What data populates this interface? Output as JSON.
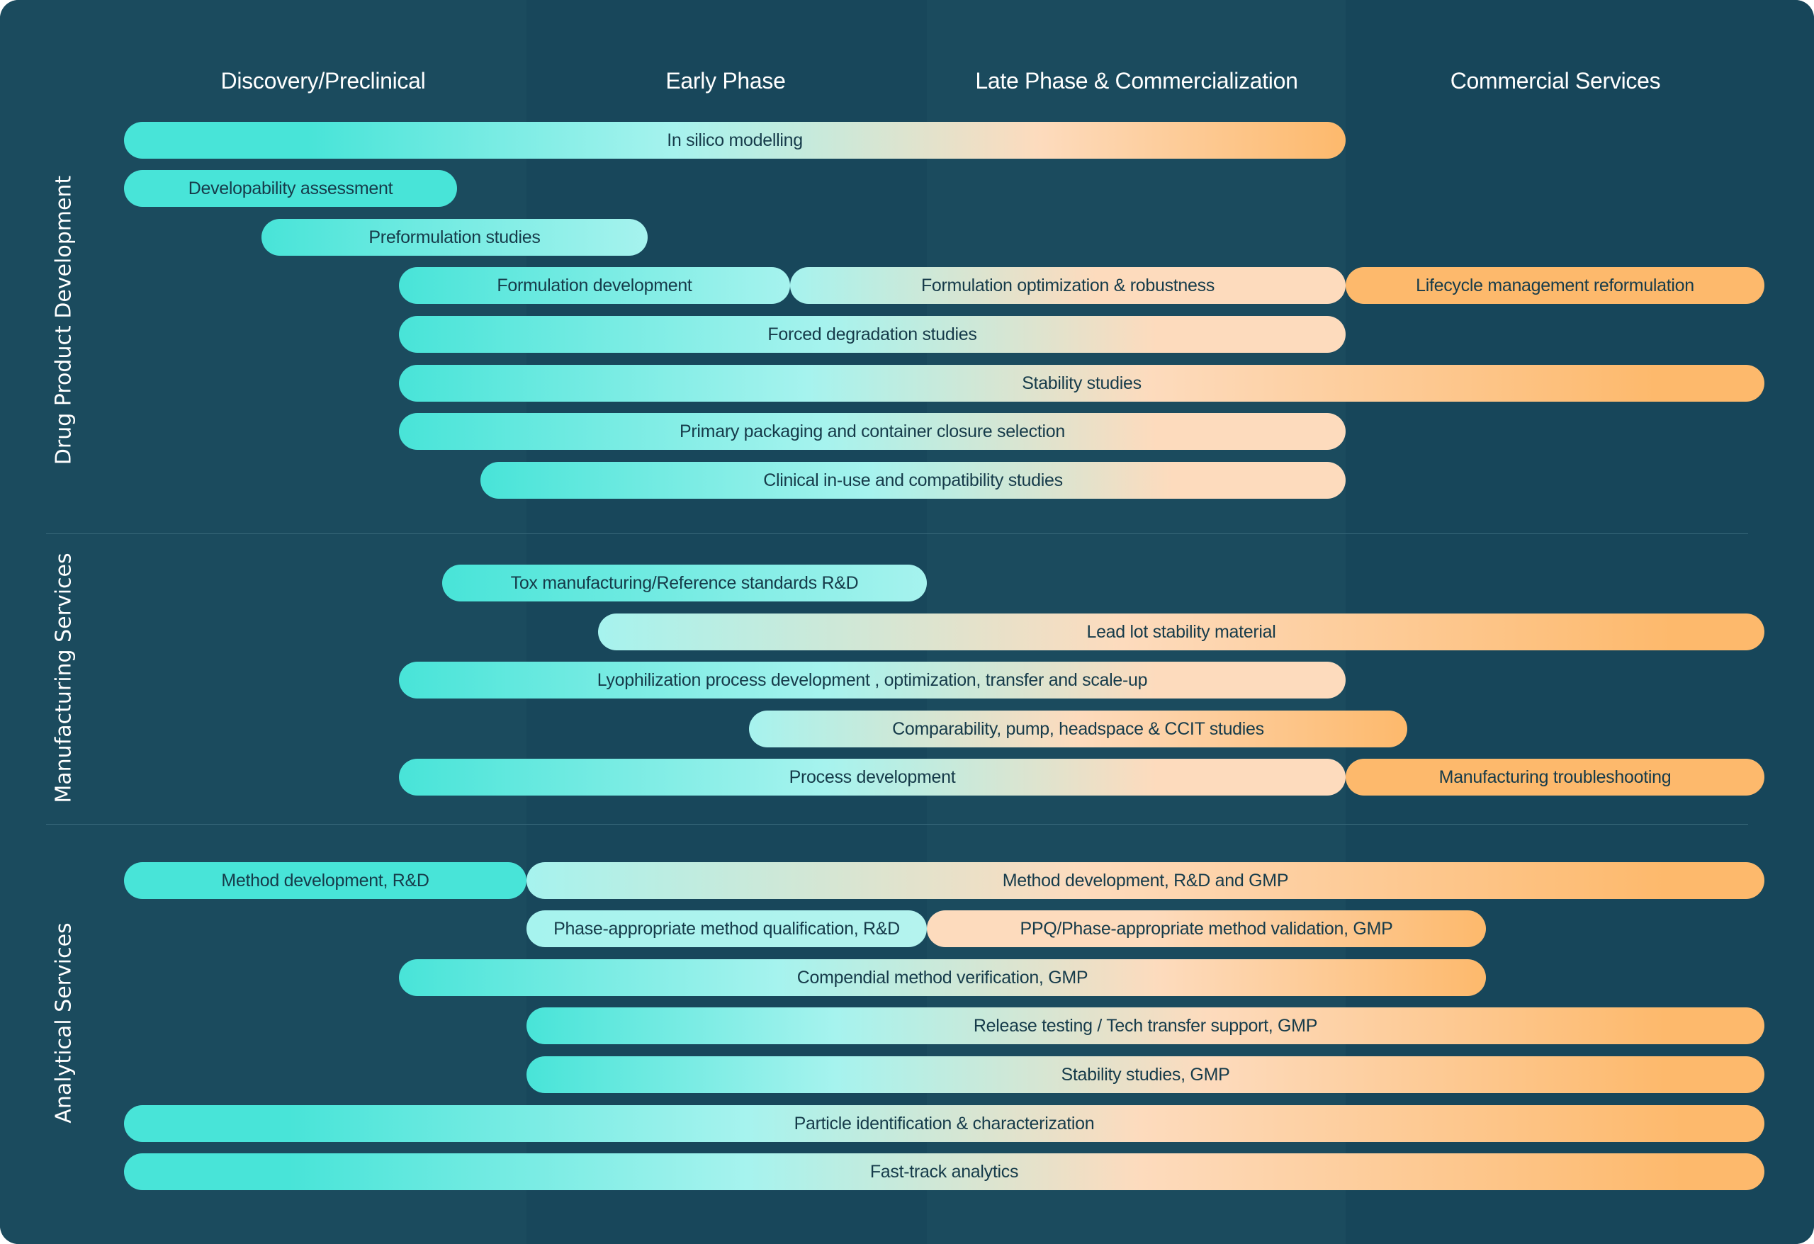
{
  "palette": {
    "background": "#17465a",
    "band_light": "#1b4b5e",
    "teal": "#48e4d8",
    "light_teal": "#a6f3ee",
    "peach": "#fddbbd",
    "orange": "#fdb96c",
    "text": "#163b4a"
  },
  "phases": [
    "Discovery/Preclinical",
    "Early Phase",
    "Late Phase & Commercialization",
    "Commercial Services"
  ],
  "sections": [
    "Drug Product Development",
    "Manufacturing  Services",
    "Analytical Services"
  ],
  "bars": [
    {
      "label": "In silico modelling",
      "section": "Drug Product Development"
    },
    {
      "label": "Developability assessment",
      "section": "Drug Product Development"
    },
    {
      "label": "Preformulation studies",
      "section": "Drug Product Development"
    },
    {
      "label": "Formulation development",
      "section": "Drug Product Development"
    },
    {
      "label": "Formulation optimization & robustness",
      "section": "Drug Product Development"
    },
    {
      "label": "Lifecycle management reformulation",
      "section": "Drug Product Development"
    },
    {
      "label": "Forced degradation studies",
      "section": "Drug Product Development"
    },
    {
      "label": "Stability studies",
      "section": "Drug Product Development"
    },
    {
      "label": "Primary packaging and container closure selection",
      "section": "Drug Product Development"
    },
    {
      "label": "Clinical in-use and compatibility studies",
      "section": "Drug Product Development"
    },
    {
      "label": "Tox manufacturing/Reference standards R&D",
      "section": "Manufacturing  Services"
    },
    {
      "label": "Lead lot stability material",
      "section": "Manufacturing  Services"
    },
    {
      "label": "Lyophilization process development , optimization, transfer and scale-up",
      "section": "Manufacturing  Services"
    },
    {
      "label": "Comparability, pump, headspace & CCIT studies",
      "section": "Manufacturing  Services"
    },
    {
      "label": "Process development",
      "section": "Manufacturing  Services"
    },
    {
      "label": "Manufacturing troubleshooting",
      "section": "Manufacturing  Services"
    },
    {
      "label": "Method development, R&D",
      "section": "Analytical Services"
    },
    {
      "label": "Method development, R&D and GMP",
      "section": "Analytical Services"
    },
    {
      "label": "Phase-appropriate method qualification, R&D",
      "section": "Analytical Services"
    },
    {
      "label": "PPQ/Phase-appropriate method validation, GMP",
      "section": "Analytical Services"
    },
    {
      "label": "Compendial method verification, GMP",
      "section": "Analytical Services"
    },
    {
      "label": "Release testing / Tech transfer support, GMP",
      "section": "Analytical Services"
    },
    {
      "label": "Stability studies, GMP",
      "section": "Analytical Services"
    },
    {
      "label": "Particle identification & characterization",
      "section": "Analytical Services"
    },
    {
      "label": "Fast-track analytics",
      "section": "Analytical Services"
    }
  ]
}
